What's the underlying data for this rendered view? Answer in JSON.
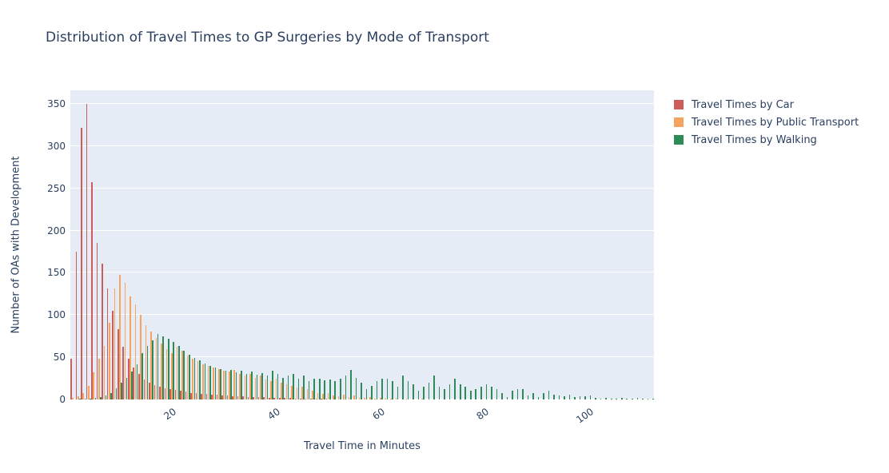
{
  "title": "Distribution of Travel Times to GP Surgeries by Mode of Transport",
  "colors": {
    "plot_background": "#E5ECF6",
    "grid": "#FFFFFF",
    "text": "#2A3F5F",
    "car": "#CD5C5C",
    "public_transport": "#F4A460",
    "walking": "#2E8B57"
  },
  "legend": {
    "position": "right",
    "items": [
      {
        "label": "Travel Times by Car",
        "color": "#CD5C5C"
      },
      {
        "label": "Travel Times by Public Transport",
        "color": "#F4A460"
      },
      {
        "label": "Travel Times by Walking",
        "color": "#2E8B57"
      }
    ]
  },
  "chart_data": {
    "type": "bar",
    "subtype": "grouped-histogram",
    "title": "Distribution of Travel Times to GP Surgeries by Mode of Transport",
    "xlabel": "Travel Time in Minutes",
    "ylabel": "Number of OAs with Development",
    "grid": true,
    "legend_position": "right",
    "xlim": [
      0,
      112
    ],
    "ylim": [
      0,
      366
    ],
    "bin_width_minutes": 1,
    "x_first_bin": 1,
    "x_ticks": [
      20,
      40,
      60,
      80,
      100
    ],
    "y_ticks": [
      0,
      50,
      100,
      150,
      200,
      250,
      300,
      350
    ],
    "series": [
      {
        "name": "Travel Times by Car",
        "color": "#CD5C5C",
        "values": [
          48,
          175,
          322,
          350,
          257,
          185,
          161,
          131,
          105,
          83,
          62,
          48,
          38,
          30,
          24,
          20,
          17,
          15,
          13,
          12,
          11,
          10,
          9,
          8,
          8,
          7,
          7,
          6,
          6,
          5,
          5,
          4,
          4,
          4,
          3,
          3,
          3,
          3,
          2,
          2,
          2,
          2,
          2,
          1,
          1,
          1,
          1,
          1,
          1,
          1,
          0,
          0,
          0,
          0,
          0,
          0,
          0,
          0,
          0,
          0,
          0,
          0,
          0,
          0,
          0,
          0,
          0,
          0,
          0,
          0,
          0,
          0,
          0,
          0,
          0,
          0,
          0,
          0,
          0,
          0,
          0,
          0,
          0,
          0,
          0,
          0,
          0,
          0,
          0,
          0,
          0,
          0,
          0,
          0,
          0,
          0,
          0,
          0,
          0,
          0,
          0,
          0,
          0,
          0,
          0,
          0,
          0,
          0,
          0,
          0,
          0,
          0
        ]
      },
      {
        "name": "Travel Times by Public Transport",
        "color": "#F4A460",
        "values": [
          2,
          4,
          8,
          16,
          32,
          48,
          63,
          91,
          131,
          148,
          138,
          122,
          113,
          100,
          88,
          80,
          73,
          66,
          60,
          55,
          62,
          58,
          52,
          48,
          45,
          42,
          40,
          38,
          36,
          34,
          33,
          35,
          30,
          28,
          30,
          26,
          28,
          24,
          22,
          25,
          20,
          18,
          16,
          14,
          15,
          12,
          10,
          8,
          7,
          8,
          5,
          4,
          6,
          3,
          5,
          2,
          2,
          3,
          1,
          2,
          1,
          1,
          2,
          0,
          1,
          0,
          0,
          1,
          0,
          0,
          0,
          0,
          0,
          0,
          0,
          0,
          0,
          0,
          0,
          0,
          0,
          0,
          0,
          0,
          0,
          0,
          0,
          0,
          0,
          0,
          0,
          0,
          0,
          0,
          0,
          0,
          0,
          0,
          0,
          0,
          0,
          0,
          0,
          0,
          0,
          0,
          0,
          0,
          0,
          0,
          0,
          0
        ]
      },
      {
        "name": "Travel Times by Walking",
        "color": "#2E8B57",
        "values": [
          0,
          1,
          1,
          1,
          2,
          3,
          5,
          8,
          13,
          20,
          26,
          33,
          42,
          55,
          63,
          70,
          78,
          75,
          72,
          68,
          63,
          58,
          53,
          49,
          46,
          43,
          40,
          38,
          36,
          34,
          35,
          32,
          34,
          30,
          33,
          29,
          31,
          28,
          34,
          30,
          26,
          28,
          30,
          25,
          28,
          22,
          25,
          25,
          23,
          24,
          22,
          25,
          28,
          35,
          26,
          20,
          12,
          16,
          22,
          25,
          25,
          22,
          15,
          28,
          22,
          18,
          10,
          15,
          20,
          28,
          15,
          12,
          18,
          25,
          18,
          15,
          10,
          12,
          15,
          18,
          15,
          12,
          8,
          3,
          10,
          12,
          12,
          5,
          8,
          3,
          8,
          10,
          6,
          5,
          4,
          6,
          3,
          4,
          4,
          5,
          2,
          1,
          2,
          1,
          1,
          2,
          1,
          1,
          2,
          1,
          1,
          1
        ]
      }
    ]
  }
}
